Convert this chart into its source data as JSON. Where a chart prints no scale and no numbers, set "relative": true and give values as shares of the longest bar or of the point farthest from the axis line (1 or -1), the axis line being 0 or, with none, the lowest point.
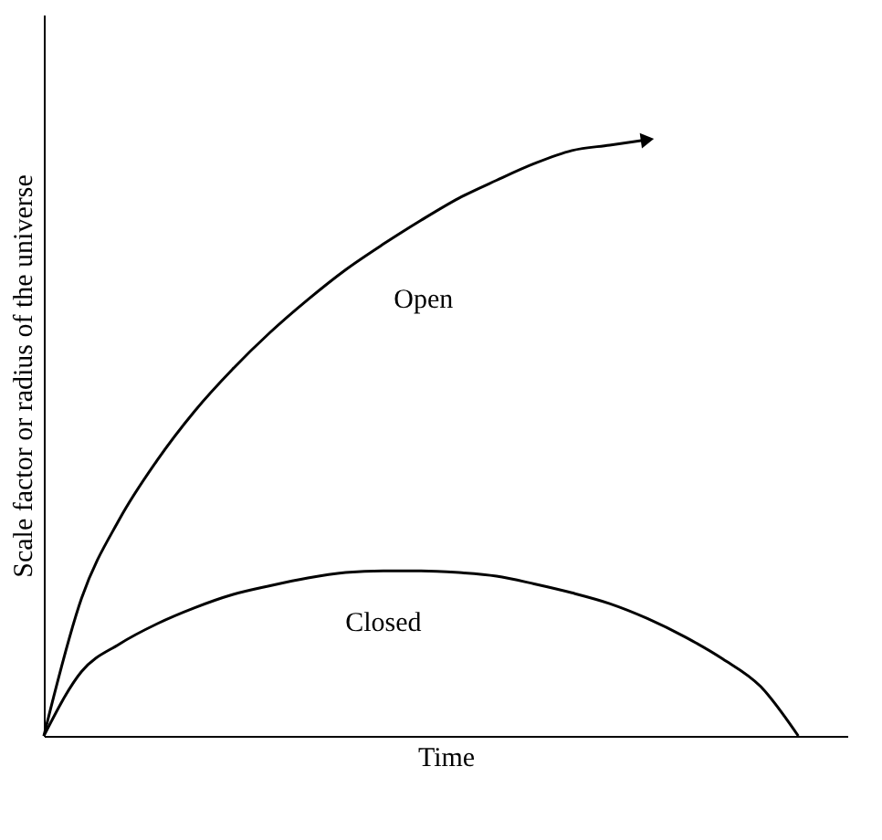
{
  "chart_data": {
    "type": "line",
    "relative": true,
    "xlabel": "Time",
    "ylabel": "Scale factor or radius of the universe",
    "grid": false,
    "categories": [
      null,
      null,
      null,
      null,
      null,
      null,
      null,
      null,
      null,
      null,
      null,
      null,
      null,
      null,
      null,
      null,
      null,
      null,
      null,
      null,
      null
    ],
    "series": [
      {
        "name": "Open",
        "color": "#000000",
        "values": [
          0,
          0.231,
          0.363,
          0.462,
          0.545,
          0.615,
          0.677,
          0.732,
          0.782,
          0.825,
          0.865,
          0.902,
          0.932,
          0.96,
          0.982,
          0.991,
          1,
          null,
          null,
          null,
          null
        ]
      },
      {
        "name": "Closed",
        "color": "#000000",
        "values": [
          0,
          0.108,
          0.154,
          0.188,
          0.215,
          0.237,
          0.252,
          0.265,
          0.274,
          0.277,
          0.277,
          0.274,
          0.268,
          0.255,
          0.24,
          0.222,
          0.197,
          0.166,
          0.129,
          0.083,
          0
        ]
      }
    ]
  }
}
